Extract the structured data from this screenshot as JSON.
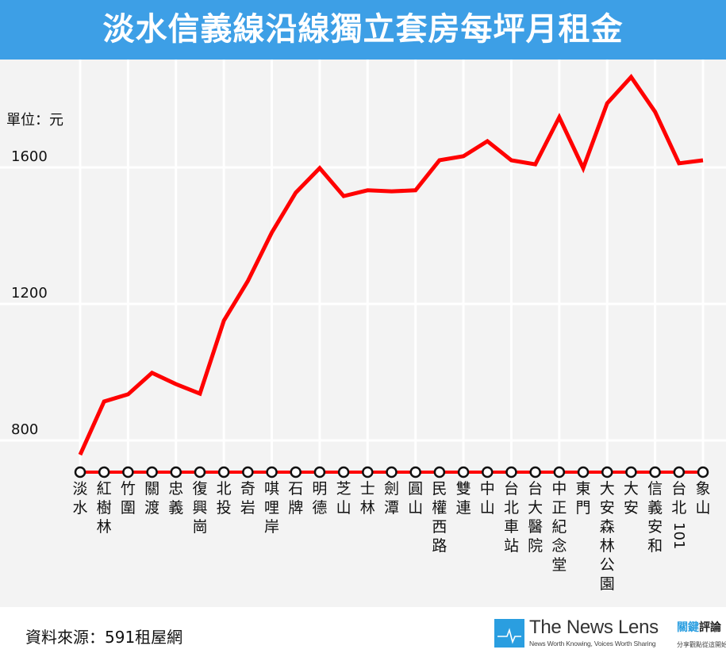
{
  "header": {
    "title": "淡水信義線沿線獨立套房每坪月租金"
  },
  "footer": {
    "source": "資料來源：591租屋網",
    "logo_main": "The News Lens",
    "logo_sub": "News Worth Knowing, Voices Worth Sharing",
    "logo_zh_blue": "關鍵",
    "logo_zh": "評論",
    "logo_zh_sub": "分享觀點從這開始"
  },
  "colors": {
    "header": "#3d9fe6",
    "line": "#ff0000",
    "background": "#f3f3f3"
  },
  "chart_data": {
    "type": "line",
    "title": "淡水信義線沿線獨立套房每坪月租金",
    "ylabel": "單位：元",
    "xlabel": "",
    "ylim": [
      720,
      1920
    ],
    "yticks": [
      800,
      1200,
      1600
    ],
    "grid": true,
    "categories": [
      "淡水",
      "紅樹林",
      "竹圍",
      "關渡",
      "忠義",
      "復興崗",
      "北投",
      "奇岩",
      "唭哩岸",
      "石牌",
      "明德",
      "芝山",
      "士林",
      "劍潭",
      "圓山",
      "民權西路",
      "雙連",
      "中山",
      "台北車站",
      "台大醫院",
      "中正紀念堂",
      "東門",
      "大安森林公園",
      "大安",
      "信義安和",
      "台北101",
      "象山"
    ],
    "series": [
      {
        "name": "每坪月租金",
        "values": [
          758,
          914,
          935,
          998,
          965,
          937,
          1151,
          1267,
          1409,
          1526,
          1598,
          1516,
          1533,
          1530,
          1533,
          1621,
          1633,
          1677,
          1621,
          1609,
          1747,
          1598,
          1788,
          1865,
          1763,
          1612,
          1621
        ]
      }
    ]
  }
}
